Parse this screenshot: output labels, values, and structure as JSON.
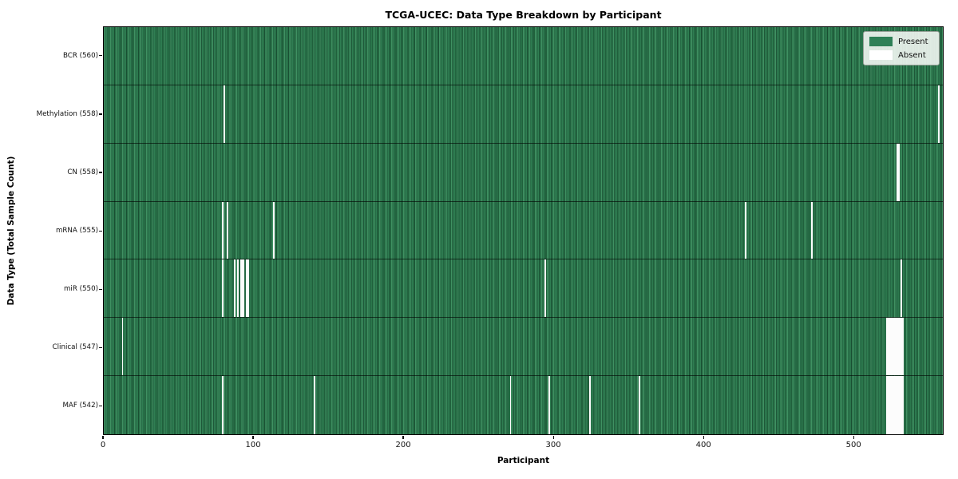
{
  "title": "TCGA-UCEC: Data Type Breakdown by Participant",
  "xlabel": "Participant",
  "ylabel": "Data Type (Total Sample Count)",
  "legend": {
    "present_label": "Present",
    "absent_label": "Absent"
  },
  "colors": {
    "present_green": "#2f7e52",
    "present_green_light": "#3f9162",
    "present_green_dark": "#277047",
    "absent_white": "#fcfcfc",
    "plot_border": "#000000",
    "legend_bg": "#f2f6f2"
  },
  "chart_data": {
    "type": "heatmap",
    "title": "TCGA-UCEC: Data Type Breakdown by Participant",
    "xlabel": "Participant",
    "ylabel": "Data Type (Total Sample Count)",
    "x_range": [
      0,
      560
    ],
    "n_participants": 560,
    "x_ticks": [
      0,
      100,
      200,
      300,
      400,
      500
    ],
    "grid": false,
    "legend_position": "upper right",
    "cell_states": {
      "present": 1,
      "absent": 0
    },
    "rows": [
      {
        "label": "BCR (560)",
        "data_type": "BCR",
        "sample_count": 560,
        "absent_participants": []
      },
      {
        "label": "Methylation (558)",
        "data_type": "Methylation",
        "sample_count": 558,
        "absent_participants": [
          80,
          557
        ]
      },
      {
        "label": "CN (558)",
        "data_type": "CN",
        "sample_count": 558,
        "absent_participants": [
          529,
          530
        ]
      },
      {
        "label": "mRNA (555)",
        "data_type": "mRNA",
        "sample_count": 555,
        "absent_participants": [
          79,
          82,
          113,
          428,
          472
        ]
      },
      {
        "label": "miR (550)",
        "data_type": "miR",
        "sample_count": 550,
        "absent_participants": [
          79,
          87,
          89,
          91,
          92,
          93,
          95,
          96,
          294,
          532
        ]
      },
      {
        "label": "Clinical (547)",
        "data_type": "Clinical",
        "sample_count": 547,
        "absent_participants": [
          12,
          522,
          523,
          524,
          525,
          526,
          527,
          528,
          529,
          530,
          531,
          532,
          533
        ]
      },
      {
        "label": "MAF (542)",
        "data_type": "MAF",
        "sample_count": 542,
        "absent_participants": [
          79,
          140,
          271,
          297,
          324,
          357,
          522,
          523,
          524,
          525,
          526,
          527,
          528,
          529,
          530,
          531,
          532,
          533
        ]
      }
    ]
  }
}
